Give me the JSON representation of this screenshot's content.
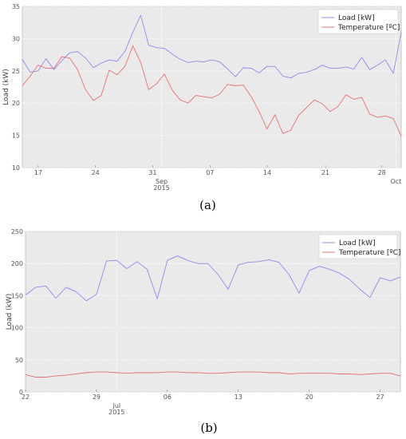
{
  "chart_data": [
    {
      "type": "line",
      "ylabel": "Load (kW)",
      "ylim": [
        10,
        35
      ],
      "yticks": [
        10,
        15,
        20,
        25,
        30,
        35
      ],
      "xlim": [
        0,
        43
      ],
      "xticks": [
        {
          "x": 1.8,
          "label": "17"
        },
        {
          "x": 8.3,
          "label": "24"
        },
        {
          "x": 14.8,
          "label": "31"
        },
        {
          "x": 21.3,
          "label": "07"
        },
        {
          "x": 27.8,
          "label": "14"
        },
        {
          "x": 34.4,
          "label": "21"
        },
        {
          "x": 40.8,
          "label": "28"
        }
      ],
      "month_ticks": [
        {
          "x": 15.8,
          "label": "Sep\n2015"
        },
        {
          "x": 42.4,
          "label": "Oct"
        }
      ],
      "grid": true,
      "legend_position": "top-right",
      "caption": "(a)",
      "series": [
        {
          "name": "Load [kW]",
          "color": "#8b8bf0",
          "values": [
            26.8,
            24.8,
            25.0,
            26.9,
            25.2,
            26.6,
            27.8,
            28.0,
            27.0,
            25.5,
            26.2,
            26.7,
            26.5,
            28.0,
            31.0,
            33.6,
            29.0,
            28.6,
            28.5,
            27.6,
            26.8,
            26.3,
            26.5,
            26.4,
            26.7,
            26.4,
            25.3,
            24.1,
            25.5,
            25.4,
            24.7,
            25.7,
            25.7,
            24.2,
            23.9,
            24.6,
            24.8,
            25.2,
            25.9,
            25.4,
            25.4,
            25.6,
            25.3,
            27.1,
            25.2,
            25.9,
            26.7,
            24.6,
            31.0
          ]
        },
        {
          "name": "Temperature [ºC]",
          "color": "#e87070",
          "values": [
            22.7,
            24.2,
            25.9,
            25.4,
            25.4,
            27.2,
            27.0,
            25.2,
            22.1,
            20.4,
            21.2,
            25.1,
            24.4,
            25.7,
            28.9,
            26.3,
            22.1,
            23.0,
            24.5,
            22.0,
            20.5,
            20.0,
            21.2,
            21.0,
            20.8,
            21.4,
            22.9,
            22.7,
            22.8,
            21.0,
            18.7,
            16.0,
            18.2,
            15.3,
            15.8,
            18.1,
            19.3,
            20.5,
            19.9,
            18.7,
            19.5,
            21.3,
            20.6,
            20.9,
            18.3,
            17.8,
            18.0,
            17.6,
            14.9
          ]
        }
      ]
    },
    {
      "type": "line",
      "ylabel": "Load (kW)",
      "ylim": [
        0,
        250
      ],
      "yticks": [
        0,
        50,
        100,
        150,
        200,
        250
      ],
      "xlim": [
        0,
        37
      ],
      "xticks": [
        {
          "x": 0,
          "label": "22"
        },
        {
          "x": 7,
          "label": "29"
        },
        {
          "x": 14,
          "label": "06"
        },
        {
          "x": 21,
          "label": "13"
        },
        {
          "x": 28,
          "label": "20"
        },
        {
          "x": 35,
          "label": "27"
        }
      ],
      "month_ticks": [
        {
          "x": 9,
          "label": "Jul\n2015"
        }
      ],
      "grid": true,
      "legend_position": "top-right",
      "caption": "(b)",
      "series": [
        {
          "name": "Load [kW]",
          "color": "#8b8bf0",
          "values": [
            151,
            163,
            165,
            146,
            163,
            156,
            142,
            152,
            204,
            205,
            192,
            203,
            191,
            145,
            205,
            212,
            205,
            200,
            200,
            183,
            160,
            198,
            202,
            203,
            206,
            202,
            183,
            154,
            189,
            196,
            191,
            185,
            175,
            160,
            147,
            178,
            173,
            179
          ]
        },
        {
          "name": "Temperature [ºC]",
          "color": "#e87070",
          "values": [
            27,
            23,
            23,
            25,
            26,
            28,
            30,
            31,
            31,
            30,
            29,
            30,
            30,
            30,
            31,
            31,
            30,
            30,
            29,
            29,
            30,
            31,
            31,
            31,
            30,
            30,
            28,
            29,
            29,
            29,
            29,
            28,
            28,
            27,
            28,
            29,
            29,
            25
          ]
        }
      ]
    }
  ]
}
